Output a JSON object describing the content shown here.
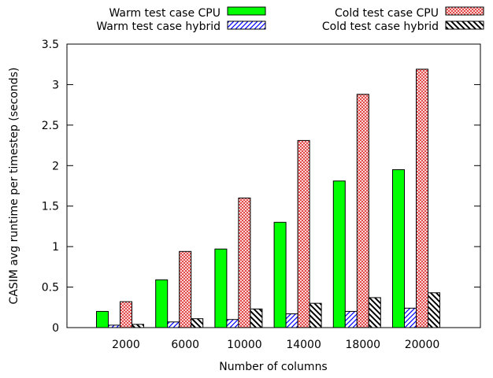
{
  "chart_data": {
    "type": "bar",
    "xlabel": "Number of columns",
    "ylabel": "CASIM avg runtime per timestep (seconds)",
    "categories": [
      "2000",
      "6000",
      "10000",
      "14000",
      "18000",
      "20000"
    ],
    "ylim": [
      0,
      3.5
    ],
    "yticks": [
      0,
      0.5,
      1,
      1.5,
      2,
      2.5,
      3,
      3.5
    ],
    "ytick_labels": [
      "0",
      "0.5",
      "1",
      "1.5",
      "2",
      "2.5",
      "3",
      "3.5"
    ],
    "grid": false,
    "legend_position": "top",
    "series": [
      {
        "name": "Warm test case CPU",
        "values": [
          0.2,
          0.59,
          0.97,
          1.3,
          1.81,
          1.95
        ],
        "color": "#00ff00",
        "pattern": "solid"
      },
      {
        "name": "Warm test case hybrid",
        "values": [
          0.03,
          0.07,
          0.1,
          0.17,
          0.2,
          0.24
        ],
        "color": "#0000ff",
        "pattern": "diagonal-hatch"
      },
      {
        "name": "Cold test case CPU",
        "values": [
          0.32,
          0.94,
          1.6,
          2.31,
          2.88,
          3.19
        ],
        "color": "#e03030",
        "pattern": "crosshatch"
      },
      {
        "name": "Cold test case hybrid",
        "values": [
          0.04,
          0.11,
          0.23,
          0.3,
          0.37,
          0.43
        ],
        "color": "#000000",
        "pattern": "back-diagonal-hatch"
      }
    ]
  }
}
